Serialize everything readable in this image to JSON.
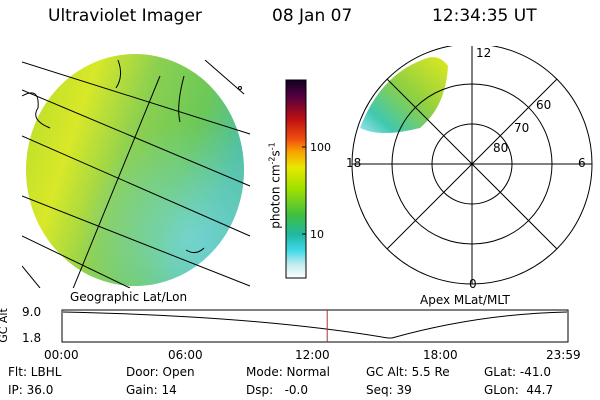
{
  "header": {
    "instrument": "Ultraviolet Imager",
    "date": "08 Jan 07",
    "time": "12:34:35 UT"
  },
  "left_panel": {
    "caption": "Geographic Lat/Lon"
  },
  "right_panel": {
    "caption": "Apex MLat/MLT",
    "mlt_labels": {
      "top": "12",
      "left": "18",
      "right": "6",
      "bottom": "0"
    },
    "lat_labels": [
      "60",
      "70",
      "80"
    ]
  },
  "colorbar": {
    "unit_main": "photon cm",
    "unit_exp1": "-2",
    "unit_mid": "s",
    "unit_exp2": "-1",
    "tick_high": "100",
    "tick_low": "10"
  },
  "timeline": {
    "ylabel": "GC Alt",
    "ytick_top": "9.0",
    "ytick_bottom": "1.8",
    "xticks": [
      "00:00",
      "06:00",
      "12:00",
      "18:00",
      "23:59"
    ],
    "current_time_fraction": 0.5241,
    "marker_color": "#b03030"
  },
  "footer": {
    "row1": {
      "flt": "Flt: LBHL",
      "door": "Door: Open",
      "mode": "Mode: Normal",
      "gcalt": "GC Alt: 5.5 Re",
      "glat": "GLat: -41.0"
    },
    "row2": {
      "ip": "IP: 36.0",
      "gain": "Gain: 14",
      "dsp": "Dsp:   -0.0",
      "seq": "Seq: 39",
      "glon": "GLon:  44.7"
    }
  }
}
